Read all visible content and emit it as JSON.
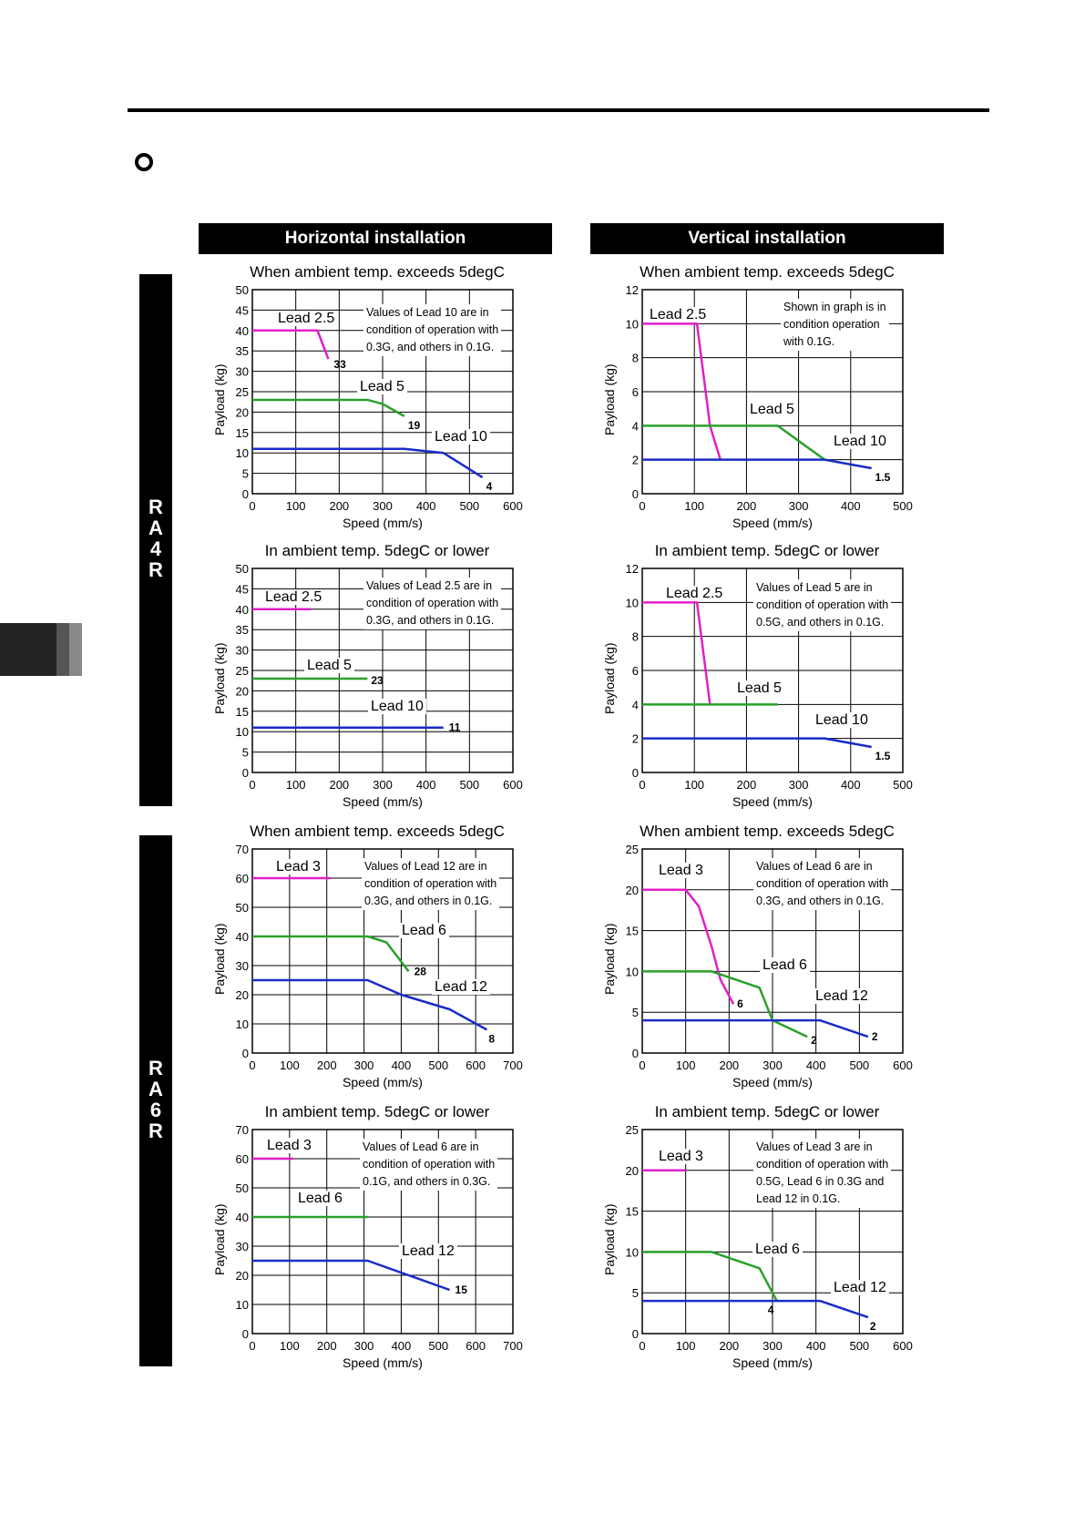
{
  "headers": {
    "horizontal": "Horizontal installation",
    "vertical": "Vertical installation"
  },
  "sidebars": {
    "ra4r": [
      "R",
      "A",
      "4",
      "R"
    ],
    "ra6r": [
      "R",
      "A",
      "6",
      "R"
    ]
  },
  "colors": {
    "magenta": "#e020c8",
    "green": "#2aa02a",
    "blue": "#1a2cc8"
  },
  "chart_data": [
    {
      "id": "ra4r-h-hot",
      "type": "line",
      "title": "When ambient temp. exceeds 5degC",
      "xlabel": "Speed (mm/s)",
      "ylabel": "Payload (kg)",
      "xlim": [
        0,
        600
      ],
      "ylim": [
        0,
        50
      ],
      "xticks": [
        0,
        100,
        200,
        300,
        400,
        500,
        600
      ],
      "yticks": [
        0,
        5,
        10,
        15,
        20,
        25,
        30,
        35,
        40,
        45,
        50
      ],
      "note": [
        "Values of Lead 10 are in",
        "condition of operation with",
        "0.3G, and others in 0.1G."
      ],
      "series": [
        {
          "name": "Lead 2.5",
          "color": "magenta",
          "points": [
            [
              0,
              40
            ],
            [
              150,
              40
            ],
            [
              175,
              33
            ]
          ],
          "end_label": "33"
        },
        {
          "name": "Lead 5",
          "color": "green",
          "points": [
            [
              0,
              23
            ],
            [
              265,
              23
            ],
            [
              300,
              22
            ],
            [
              350,
              19
            ]
          ],
          "end_label": "19"
        },
        {
          "name": "Lead 10",
          "color": "blue",
          "points": [
            [
              0,
              11
            ],
            [
              350,
              11
            ],
            [
              440,
              10
            ],
            [
              530,
              4
            ]
          ],
          "end_label": "4"
        }
      ]
    },
    {
      "id": "ra4r-v-hot",
      "type": "line",
      "title": "When ambient temp. exceeds 5degC",
      "xlabel": "Speed (mm/s)",
      "ylabel": "Payload (kg)",
      "xlim": [
        0,
        500
      ],
      "ylim": [
        0,
        12
      ],
      "xticks": [
        0,
        100,
        200,
        300,
        400,
        500
      ],
      "yticks": [
        0,
        2,
        4,
        6,
        8,
        10,
        12
      ],
      "note": [
        "Shown in graph is in",
        "condition operation",
        "with 0.1G."
      ],
      "series": [
        {
          "name": "Lead 2.5",
          "color": "magenta",
          "points": [
            [
              0,
              10
            ],
            [
              105,
              10
            ],
            [
              130,
              4
            ],
            [
              150,
              2
            ]
          ]
        },
        {
          "name": "Lead 5",
          "color": "green",
          "points": [
            [
              0,
              4
            ],
            [
              260,
              4
            ],
            [
              350,
              2
            ]
          ]
        },
        {
          "name": "Lead 10",
          "color": "blue",
          "points": [
            [
              0,
              2
            ],
            [
              350,
              2
            ],
            [
              440,
              1.5
            ]
          ],
          "end_label": "1.5"
        }
      ]
    },
    {
      "id": "ra4r-h-cold",
      "type": "line",
      "title": "In ambient temp. 5degC or lower",
      "xlabel": "Speed (mm/s)",
      "ylabel": "Payload (kg)",
      "xlim": [
        0,
        600
      ],
      "ylim": [
        0,
        50
      ],
      "xticks": [
        0,
        100,
        200,
        300,
        400,
        500,
        600
      ],
      "yticks": [
        0,
        5,
        10,
        15,
        20,
        25,
        30,
        35,
        40,
        45,
        50
      ],
      "note": [
        "Values of Lead 2.5 are in",
        "condition of operation with",
        "0.3G, and others in 0.1G."
      ],
      "series": [
        {
          "name": "Lead 2.5",
          "color": "magenta",
          "points": [
            [
              0,
              40
            ],
            [
              135,
              40
            ]
          ]
        },
        {
          "name": "Lead 5",
          "color": "green",
          "points": [
            [
              0,
              23
            ],
            [
              265,
              23
            ]
          ],
          "end_label": "23"
        },
        {
          "name": "Lead 10",
          "color": "blue",
          "points": [
            [
              0,
              11
            ],
            [
              440,
              11
            ]
          ],
          "end_label": "11"
        }
      ]
    },
    {
      "id": "ra4r-v-cold",
      "type": "line",
      "title": "In ambient temp. 5degC or lower",
      "xlabel": "Speed (mm/s)",
      "ylabel": "Payload (kg)",
      "xlim": [
        0,
        500
      ],
      "ylim": [
        0,
        12
      ],
      "xticks": [
        0,
        100,
        200,
        300,
        400,
        500
      ],
      "yticks": [
        0,
        2,
        4,
        6,
        8,
        10,
        12
      ],
      "note": [
        "Values of Lead 5 are in",
        "condition of operation with",
        "0.5G, and others in 0.1G."
      ],
      "series": [
        {
          "name": "Lead 2.5",
          "color": "magenta",
          "points": [
            [
              0,
              10
            ],
            [
              105,
              10
            ],
            [
              130,
              4
            ]
          ]
        },
        {
          "name": "Lead 5",
          "color": "green",
          "points": [
            [
              0,
              4
            ],
            [
              260,
              4
            ]
          ]
        },
        {
          "name": "Lead 10",
          "color": "blue",
          "points": [
            [
              0,
              2
            ],
            [
              350,
              2
            ],
            [
              440,
              1.5
            ]
          ],
          "end_label": "1.5"
        }
      ]
    },
    {
      "id": "ra6r-h-hot",
      "type": "line",
      "title": "When ambient temp. exceeds 5degC",
      "xlabel": "Speed (mm/s)",
      "ylabel": "Payload (kg)",
      "xlim": [
        0,
        700
      ],
      "ylim": [
        0,
        70
      ],
      "xticks": [
        0,
        100,
        200,
        300,
        400,
        500,
        600,
        700
      ],
      "yticks": [
        0,
        10,
        20,
        30,
        40,
        50,
        60,
        70
      ],
      "note": [
        "Values of Lead 12 are in",
        "condition of operation with",
        "0.3G, and others in 0.1G."
      ],
      "series": [
        {
          "name": "Lead 3",
          "color": "magenta",
          "points": [
            [
              0,
              60
            ],
            [
              210,
              60
            ]
          ]
        },
        {
          "name": "Lead 6",
          "color": "green",
          "points": [
            [
              0,
              40
            ],
            [
              310,
              40
            ],
            [
              360,
              38
            ],
            [
              420,
              28
            ]
          ],
          "end_label": "28"
        },
        {
          "name": "Lead 12",
          "color": "blue",
          "points": [
            [
              0,
              25
            ],
            [
              310,
              25
            ],
            [
              400,
              20
            ],
            [
              530,
              15
            ],
            [
              630,
              8
            ]
          ],
          "end_label": "8"
        }
      ]
    },
    {
      "id": "ra6r-v-hot",
      "type": "line",
      "title": "When ambient temp. exceeds 5degC",
      "xlabel": "Speed (mm/s)",
      "ylabel": "Payload (kg)",
      "xlim": [
        0,
        600
      ],
      "ylim": [
        0,
        25
      ],
      "xticks": [
        0,
        100,
        200,
        300,
        400,
        500,
        600
      ],
      "yticks": [
        0,
        5,
        10,
        15,
        20,
        25
      ],
      "note": [
        "Values of Lead 6 are in",
        "condition of operation with",
        "0.3G, and others in 0.1G."
      ],
      "series": [
        {
          "name": "Lead 3",
          "color": "magenta",
          "points": [
            [
              0,
              20
            ],
            [
              100,
              20
            ],
            [
              130,
              18
            ],
            [
              160,
              13
            ],
            [
              180,
              9
            ],
            [
              210,
              6
            ]
          ],
          "end_label": "6"
        },
        {
          "name": "Lead 6",
          "color": "green",
          "points": [
            [
              0,
              10
            ],
            [
              160,
              10
            ],
            [
              270,
              8
            ],
            [
              300,
              4
            ],
            [
              380,
              2
            ]
          ],
          "end_label": "2"
        },
        {
          "name": "Lead 12",
          "color": "blue",
          "points": [
            [
              0,
              4
            ],
            [
              410,
              4
            ],
            [
              520,
              2
            ]
          ],
          "end_label": "2"
        }
      ]
    },
    {
      "id": "ra6r-h-cold",
      "type": "line",
      "title": "In ambient temp. 5degC or lower",
      "xlabel": "Speed (mm/s)",
      "ylabel": "Payload (kg)",
      "xlim": [
        0,
        700
      ],
      "ylim": [
        0,
        70
      ],
      "xticks": [
        0,
        100,
        200,
        300,
        400,
        500,
        600,
        700
      ],
      "yticks": [
        0,
        10,
        20,
        30,
        40,
        50,
        60,
        70
      ],
      "note": [
        "Values of Lead 6 are in",
        "condition of operation with",
        "0.1G, and others in 0.3G."
      ],
      "series": [
        {
          "name": "Lead 3",
          "color": "magenta",
          "points": [
            [
              0,
              60
            ],
            [
              110,
              60
            ]
          ]
        },
        {
          "name": "Lead 6",
          "color": "green",
          "points": [
            [
              0,
              40
            ],
            [
              310,
              40
            ]
          ]
        },
        {
          "name": "Lead 12",
          "color": "blue",
          "points": [
            [
              0,
              25
            ],
            [
              310,
              25
            ],
            [
              530,
              15
            ]
          ],
          "end_label": "15"
        }
      ]
    },
    {
      "id": "ra6r-v-cold",
      "type": "line",
      "title": "In ambient temp. 5degC or lower",
      "xlabel": "Speed (mm/s)",
      "ylabel": "Payload (kg)",
      "xlim": [
        0,
        600
      ],
      "ylim": [
        0,
        25
      ],
      "xticks": [
        0,
        100,
        200,
        300,
        400,
        500,
        600
      ],
      "yticks": [
        0,
        5,
        10,
        15,
        20,
        25
      ],
      "note": [
        "Values of Lead 3 are in",
        "condition of operation with",
        "0.5G, Lead 6 in 0.3G and",
        "Lead 12 in 0.1G."
      ],
      "series": [
        {
          "name": "Lead 3",
          "color": "magenta",
          "points": [
            [
              0,
              20
            ],
            [
              100,
              20
            ]
          ]
        },
        {
          "name": "Lead 6",
          "color": "green",
          "points": [
            [
              0,
              10
            ],
            [
              160,
              10
            ],
            [
              270,
              8
            ],
            [
              310,
              4
            ]
          ],
          "end_label": "4"
        },
        {
          "name": "Lead 12",
          "color": "blue",
          "points": [
            [
              0,
              4
            ],
            [
              410,
              4
            ],
            [
              520,
              2
            ]
          ],
          "end_label": "2"
        }
      ]
    }
  ]
}
